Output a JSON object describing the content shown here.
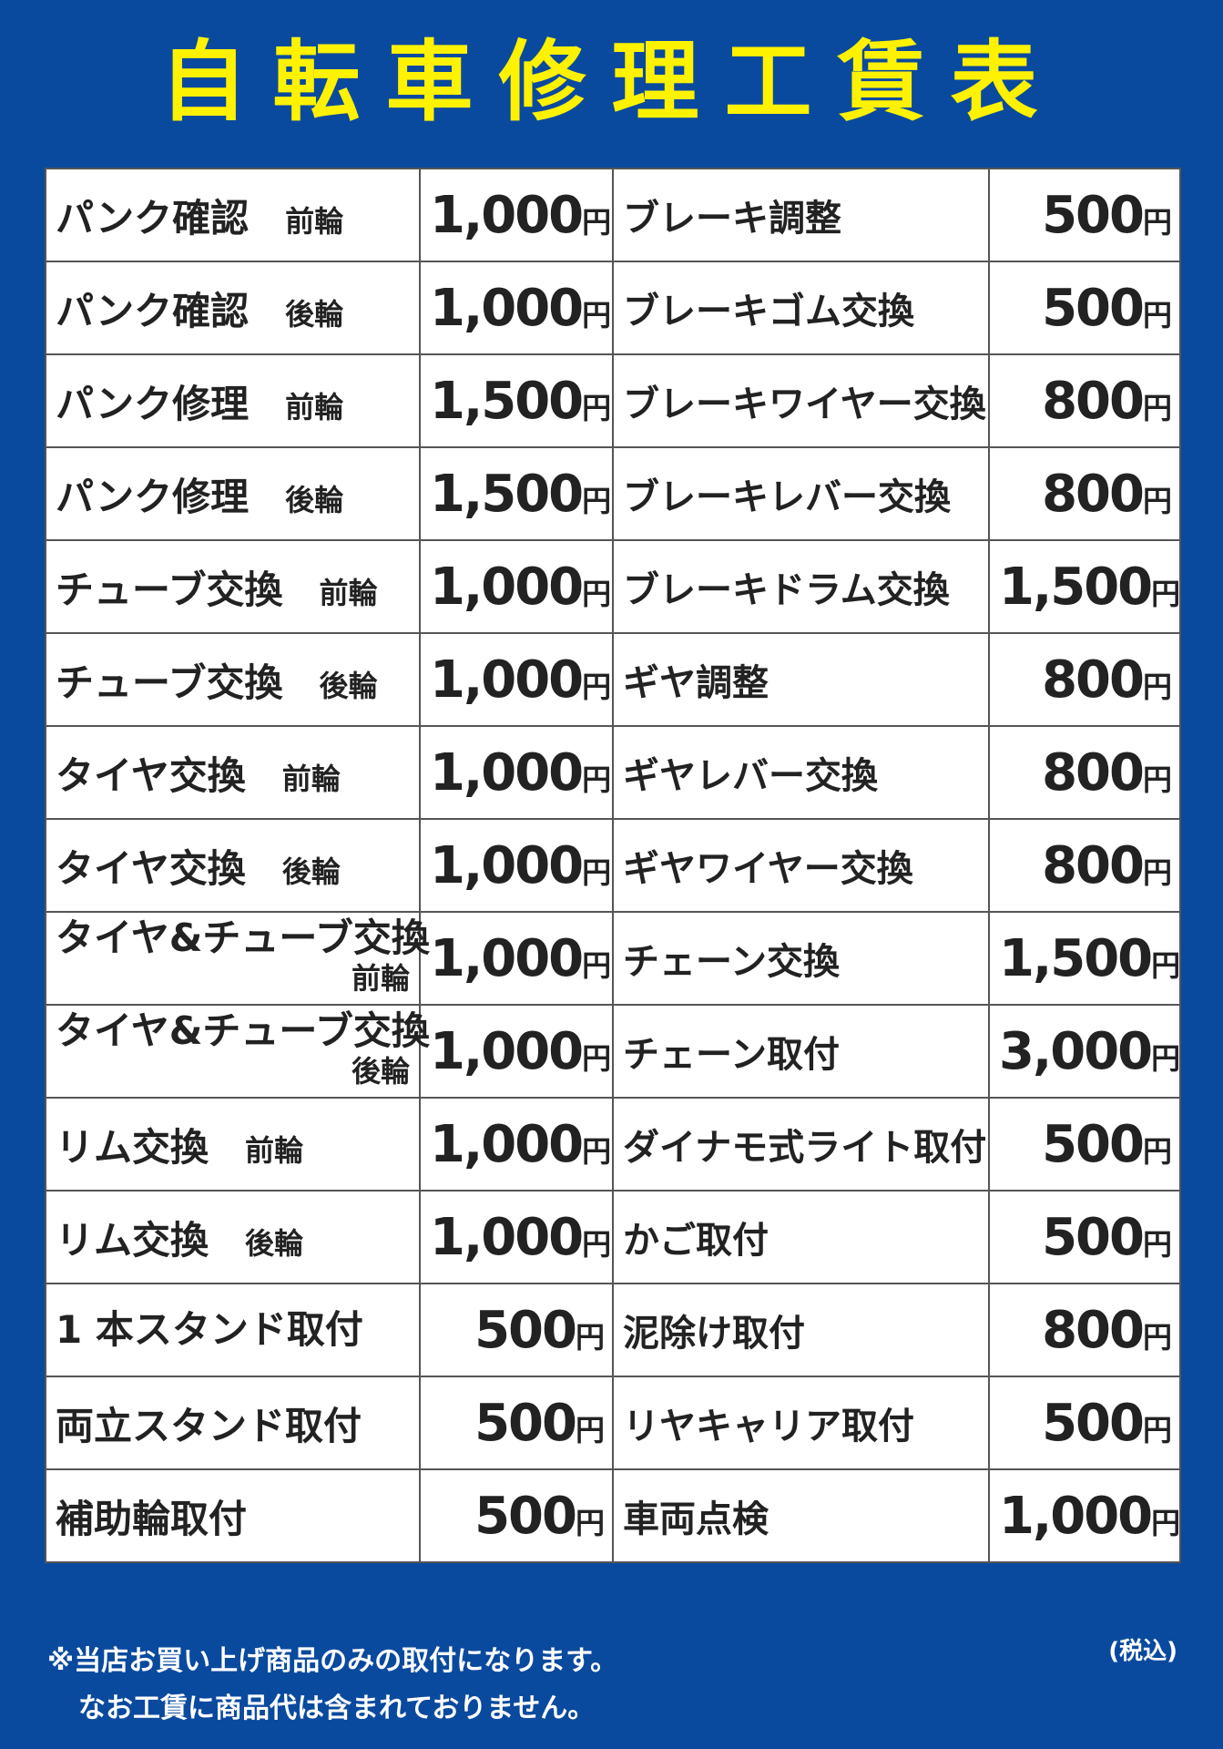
{
  "header": {
    "title": "自転車修理工賃表"
  },
  "unit": "円",
  "table": {
    "rows": [
      {
        "name": "パンク確認",
        "sub": "前輪",
        "price": "1,000",
        "name2": "ブレーキ調整",
        "price2": "500"
      },
      {
        "name": "パンク確認",
        "sub": "後輪",
        "price": "1,000",
        "name2": "ブレーキゴム交換",
        "price2": "500"
      },
      {
        "name": "パンク修理",
        "sub": "前輪",
        "price": "1,500",
        "name2": "ブレーキワイヤー交換",
        "price2": "800"
      },
      {
        "name": "パンク修理",
        "sub": "後輪",
        "price": "1,500",
        "name2": "ブレーキレバー交換",
        "price2": "800"
      },
      {
        "name": "チューブ交換",
        "sub": "前輪",
        "price": "1,000",
        "name2": "ブレーキドラム交換",
        "price2": "1,500"
      },
      {
        "name": "チューブ交換",
        "sub": "後輪",
        "price": "1,000",
        "name2": "ギヤ調整",
        "price2": "800"
      },
      {
        "name": "タイヤ交換",
        "sub": "前輪",
        "price": "1,000",
        "name2": "ギヤレバー交換",
        "price2": "800"
      },
      {
        "name": "タイヤ交換",
        "sub": "後輪",
        "price": "1,000",
        "name2": "ギヤワイヤー交換",
        "price2": "800"
      },
      {
        "name": "タイヤ&チューブ交換",
        "sub": "前輪",
        "price": "1,000",
        "name2": "チェーン交換",
        "price2": "1,500"
      },
      {
        "name": "タイヤ&チューブ交換",
        "sub": "後輪",
        "price": "1,000",
        "name2": "チェーン取付",
        "price2": "3,000"
      },
      {
        "name": "リム交換",
        "sub": "前輪",
        "price": "1,000",
        "name2": "ダイナモ式ライト取付",
        "price2": "500"
      },
      {
        "name": "リム交換",
        "sub": "後輪",
        "price": "1,000",
        "name2": "かご取付",
        "price2": "500"
      },
      {
        "name": "1 本スタンド取付",
        "price": "500",
        "name2": "泥除け取付",
        "price2": "800"
      },
      {
        "name": "両立スタンド取付",
        "price": "500",
        "name2": "リヤキャリア取付",
        "price2": "500"
      },
      {
        "name": "補助輪取付",
        "price": "500",
        "name2": "車両点検",
        "price2": "1,000"
      }
    ]
  },
  "footer": {
    "tax": "(税込)",
    "notes": [
      "※当店お買い上げ商品のみの取付になります。",
      "なお工賃に商品代は含まれておりません。"
    ]
  }
}
